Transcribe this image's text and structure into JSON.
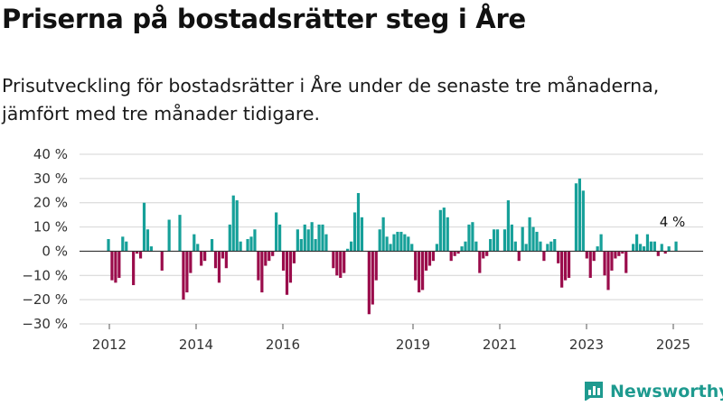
{
  "title": "Priserna på bostadsrätter steg i Åre",
  "subtitle": "Prisutveckling för bostadsrätter i Åre under de senaste tre månaderna, jämfört med tre månader tidigare.",
  "brand": {
    "name": "Newsworthy",
    "logo_icon": "bar-chart-icon",
    "color": "#1e9a8f"
  },
  "chart_data": {
    "type": "bar",
    "colors": {
      "positive": "#16a099",
      "negative": "#9a0c4b",
      "grid": "#d4d4d4",
      "zero_line": "#333333"
    },
    "ylim": [
      -30,
      40
    ],
    "y_ticks": [
      40,
      30,
      20,
      10,
      0,
      -10,
      -20,
      -30
    ],
    "y_tick_labels": [
      "40 %",
      "30 %",
      "20 %",
      "10 %",
      "0 %",
      "−10 %",
      "−20 %",
      "−30 %"
    ],
    "x_ticks": [
      "2012",
      "2014",
      "2016",
      "2019",
      "2021",
      "2023",
      "2025"
    ],
    "annotation": {
      "text": "4 %",
      "value": 4
    },
    "values": [
      5,
      -12,
      -13,
      -11,
      6,
      4,
      0,
      -14,
      -1,
      -3,
      20,
      9,
      2,
      0,
      0,
      -8,
      0,
      13,
      0,
      0,
      15,
      -20,
      -17,
      -9,
      7,
      3,
      -6,
      -4,
      0,
      5,
      -7,
      -13,
      -3,
      -7,
      11,
      23,
      21,
      4,
      0,
      5,
      6,
      9,
      -12,
      -17,
      -6,
      -4,
      -2,
      16,
      11,
      -8,
      -18,
      -13,
      -5,
      9,
      5,
      11,
      9,
      12,
      5,
      11,
      11,
      7,
      0,
      -7,
      -10,
      -11,
      -9,
      1,
      4,
      16,
      24,
      14,
      0,
      -26,
      -22,
      -12,
      9,
      14,
      6,
      3,
      7,
      8,
      8,
      7,
      6,
      3,
      -12,
      -17,
      -16,
      -8,
      -6,
      -4,
      3,
      17,
      18,
      14,
      -4,
      -2,
      -1,
      2,
      4,
      11,
      12,
      4,
      -9,
      -3,
      -2,
      5,
      9,
      9,
      0,
      9,
      21,
      11,
      4,
      -4,
      10,
      3,
      14,
      10,
      8,
      4,
      -4,
      3,
      4,
      5,
      -5,
      -15,
      -12,
      -11,
      0,
      28,
      30,
      25,
      -3,
      -11,
      -4,
      2,
      7,
      -10,
      -16,
      -8,
      -3,
      -2,
      -1,
      -9,
      0,
      3,
      7,
      3,
      2,
      7,
      4,
      4,
      -2,
      3,
      -1,
      2,
      0,
      4
    ]
  }
}
